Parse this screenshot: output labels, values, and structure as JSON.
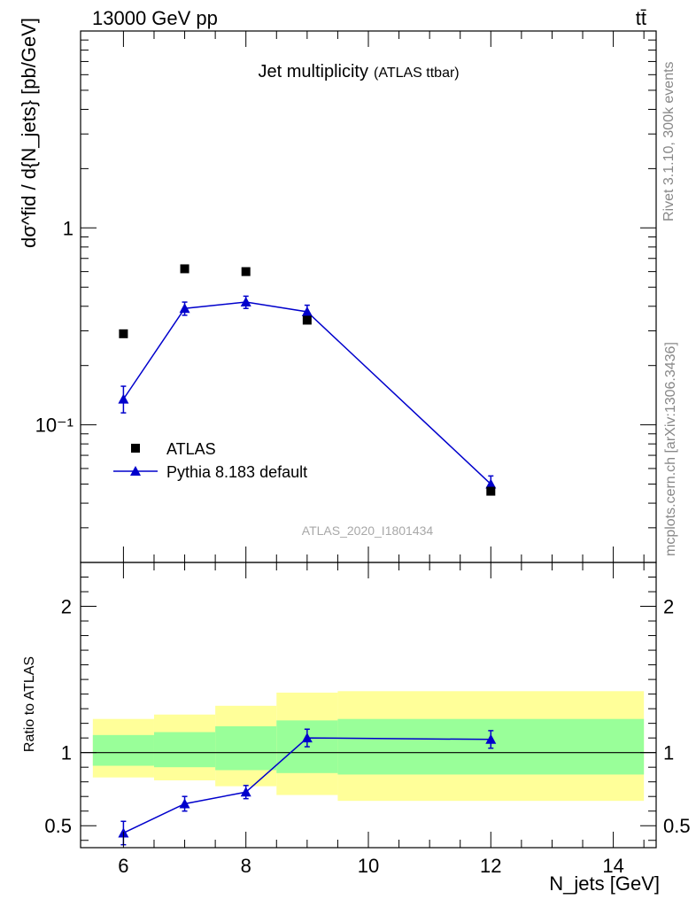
{
  "header": {
    "left": "13000 GeV pp",
    "right": "tt̄"
  },
  "side_labels": {
    "rivet": "Rivet 3.1.10,  300k events",
    "mcplots": "mcplots.cern.ch [arXiv:1306.3436]"
  },
  "chart_data": [
    {
      "type": "scatter",
      "title": "Jet multiplicity",
      "subtitle": "(ATLAS ttbar)",
      "watermark": "ATLAS_2020_I1801434",
      "ylabel": "dσ^fid / d{N_jets} [pb/GeV]",
      "xlabel": "N_jets [GeV]",
      "yscale": "log",
      "ylim": [
        0.02,
        10
      ],
      "xlim": [
        5.3,
        14.7
      ],
      "y_ticks": [
        {
          "value": 1,
          "label": "1"
        },
        {
          "value": 0.1,
          "label": "10⁻¹"
        }
      ],
      "legend": {
        "placement": "lower-left",
        "entries": [
          "ATLAS",
          "Pythia 8.183 default"
        ]
      },
      "series": [
        {
          "name": "ATLAS",
          "marker": "square",
          "color": "#000000",
          "x": [
            6,
            7,
            8,
            9,
            12
          ],
          "y": [
            0.29,
            0.62,
            0.6,
            0.34,
            0.046
          ]
        },
        {
          "name": "Pythia 8.183 default",
          "marker": "triangle",
          "color": "#0000cc",
          "x": [
            6,
            7,
            8,
            9,
            12
          ],
          "y": [
            0.135,
            0.39,
            0.42,
            0.375,
            0.05
          ],
          "err_lo": [
            0.02,
            0.03,
            0.03,
            0.03,
            0.005
          ],
          "err_hi": [
            0.022,
            0.03,
            0.03,
            0.03,
            0.005
          ]
        }
      ]
    },
    {
      "type": "scatter",
      "ylabel": "Ratio to ATLAS",
      "xlabel": "N_jets [GeV]",
      "ylim": [
        0.35,
        2.3
      ],
      "xlim": [
        5.3,
        14.7
      ],
      "x_ticks": [
        6,
        8,
        10,
        12,
        14
      ],
      "y_ticks": [
        {
          "value": 0.5,
          "label": "0.5"
        },
        {
          "value": 1,
          "label": "1"
        },
        {
          "value": 2,
          "label": "2"
        }
      ],
      "reference_line": 1,
      "uncertainty_bands": [
        {
          "x_lo": 5.5,
          "x_hi": 6.5,
          "green": [
            0.91,
            1.12
          ],
          "yellow": [
            0.83,
            1.23
          ]
        },
        {
          "x_lo": 6.5,
          "x_hi": 7.5,
          "green": [
            0.9,
            1.14
          ],
          "yellow": [
            0.81,
            1.26
          ]
        },
        {
          "x_lo": 7.5,
          "x_hi": 8.5,
          "green": [
            0.88,
            1.18
          ],
          "yellow": [
            0.77,
            1.32
          ]
        },
        {
          "x_lo": 8.5,
          "x_hi": 9.5,
          "green": [
            0.86,
            1.22
          ],
          "yellow": [
            0.71,
            1.41
          ]
        },
        {
          "x_lo": 9.5,
          "x_hi": 14.5,
          "green": [
            0.85,
            1.23
          ],
          "yellow": [
            0.67,
            1.42
          ]
        }
      ],
      "series": [
        {
          "name": "Pythia 8.183 default",
          "marker": "triangle",
          "color": "#0000cc",
          "x": [
            6,
            7,
            8,
            9,
            12
          ],
          "y": [
            0.45,
            0.65,
            0.73,
            1.1,
            1.09
          ],
          "err_lo": [
            0.08,
            0.05,
            0.045,
            0.06,
            0.06
          ],
          "err_hi": [
            0.08,
            0.05,
            0.045,
            0.06,
            0.06
          ]
        }
      ]
    }
  ]
}
